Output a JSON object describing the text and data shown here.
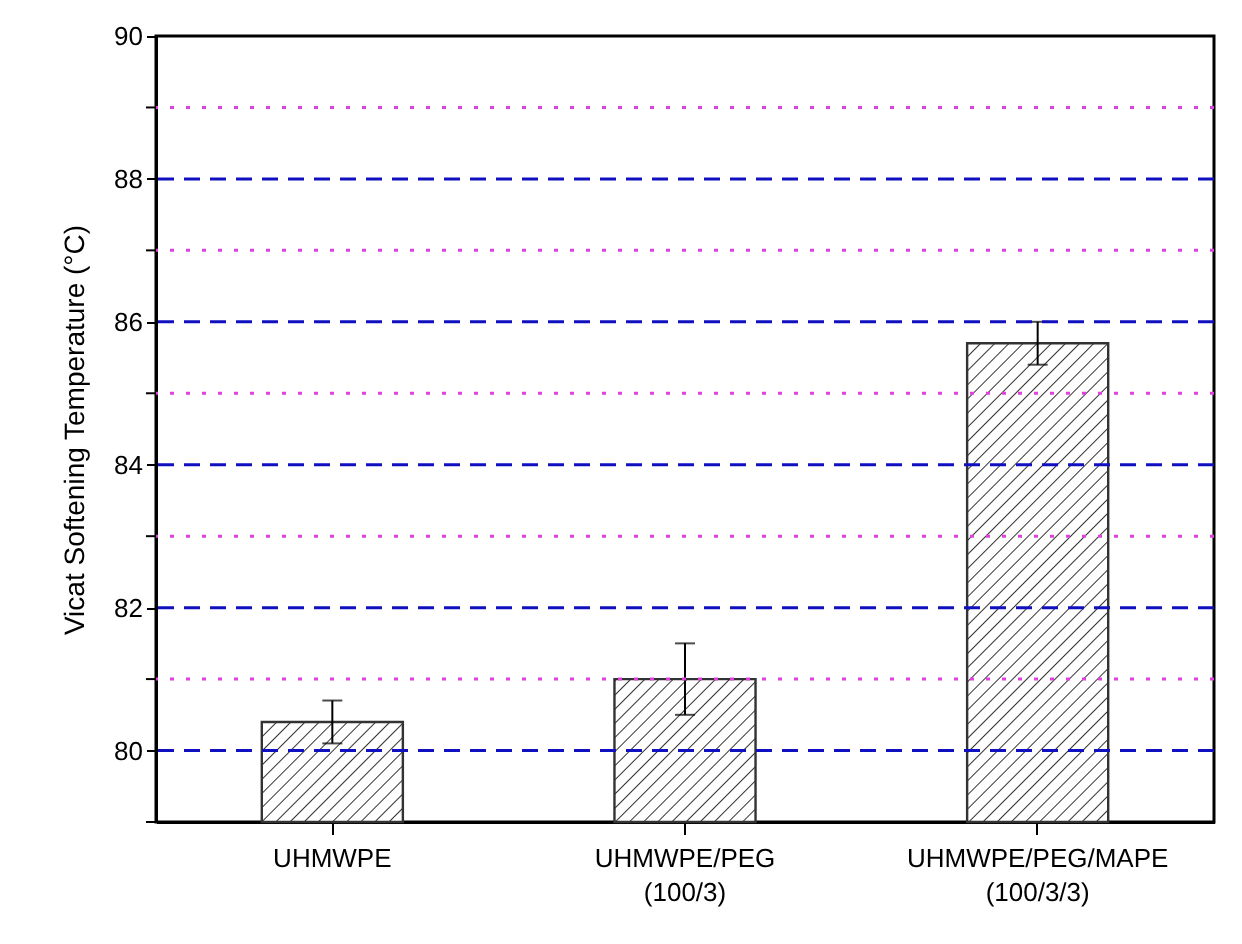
{
  "chart_data": {
    "type": "bar",
    "ylabel": "Vicat Softening Temperature (°C)",
    "categories": [
      "UHMWPE",
      "UHMWPE/PEG\n(100/3)",
      "UHMWPE/PEG/MAPE\n(100/3/3)"
    ],
    "values": [
      80.4,
      81.0,
      85.7
    ],
    "errors": [
      0.3,
      0.5,
      0.3
    ],
    "color": "#333333",
    "ylim": [
      79,
      90
    ],
    "yticks": [
      {
        "value": 79,
        "label": null
      },
      80,
      {
        "value": 81,
        "label": null
      },
      82,
      {
        "value": 83,
        "label": null
      },
      84,
      {
        "value": 85,
        "label": null
      },
      86,
      {
        "value": 87,
        "label": null
      },
      88,
      {
        "value": 89,
        "label": null
      },
      90
    ],
    "grid": "y"
  }
}
